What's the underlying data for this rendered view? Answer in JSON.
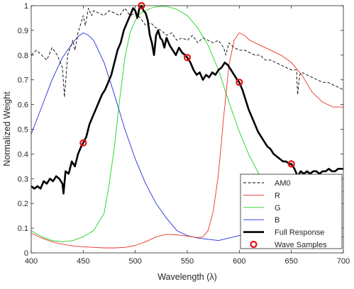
{
  "chart_data": {
    "type": "line",
    "title": "",
    "xlabel": "Wavelength (λ)",
    "ylabel": "Normalized Weight",
    "xlim": [
      400,
      700
    ],
    "ylim": [
      0,
      1
    ],
    "x_ticks": [
      400,
      450,
      500,
      550,
      600,
      650,
      700
    ],
    "y_ticks": [
      0,
      0.1,
      0.2,
      0.3,
      0.4,
      0.5,
      0.6,
      0.7,
      0.8,
      0.9,
      1
    ],
    "grid": false,
    "legend_position": "bottom-right",
    "series": [
      {
        "name": "AM0",
        "color": "#000000",
        "style": "dashed",
        "x": [
          400,
          405,
          410,
          415,
          420,
          425,
          430,
          432,
          435,
          440,
          442,
          445,
          450,
          452,
          455,
          458,
          460,
          465,
          470,
          475,
          480,
          485,
          490,
          495,
          500,
          505,
          510,
          515,
          520,
          525,
          530,
          535,
          540,
          545,
          550,
          555,
          560,
          565,
          570,
          575,
          580,
          585,
          587,
          590,
          595,
          600,
          605,
          610,
          615,
          620,
          625,
          630,
          635,
          640,
          645,
          650,
          655,
          656,
          658,
          660,
          665,
          670,
          675,
          680,
          685,
          690,
          695,
          700
        ],
        "y": [
          0.8,
          0.82,
          0.8,
          0.78,
          0.83,
          0.8,
          0.75,
          0.63,
          0.8,
          0.86,
          0.82,
          0.89,
          0.96,
          0.92,
          0.99,
          0.96,
          0.98,
          0.97,
          0.96,
          0.98,
          0.97,
          0.96,
          0.99,
          0.96,
          0.97,
          0.95,
          0.92,
          0.93,
          0.91,
          0.9,
          0.88,
          0.89,
          0.86,
          0.87,
          0.86,
          0.88,
          0.85,
          0.87,
          0.86,
          0.85,
          0.86,
          0.83,
          0.8,
          0.85,
          0.83,
          0.82,
          0.82,
          0.81,
          0.8,
          0.8,
          0.78,
          0.78,
          0.77,
          0.76,
          0.75,
          0.74,
          0.74,
          0.64,
          0.72,
          0.73,
          0.72,
          0.71,
          0.7,
          0.69,
          0.69,
          0.68,
          0.67,
          0.66
        ]
      },
      {
        "name": "R",
        "color": "#e8312a",
        "style": "solid",
        "x": [
          400,
          410,
          420,
          430,
          440,
          450,
          460,
          470,
          480,
          490,
          500,
          510,
          520,
          530,
          540,
          550,
          560,
          565,
          570,
          575,
          580,
          585,
          590,
          595,
          600,
          605,
          610,
          620,
          630,
          640,
          650,
          660,
          670,
          680,
          690,
          700
        ],
        "y": [
          0.08,
          0.06,
          0.045,
          0.035,
          0.028,
          0.025,
          0.022,
          0.02,
          0.02,
          0.022,
          0.03,
          0.045,
          0.065,
          0.075,
          0.073,
          0.068,
          0.062,
          0.065,
          0.09,
          0.17,
          0.32,
          0.55,
          0.76,
          0.86,
          0.89,
          0.88,
          0.86,
          0.84,
          0.82,
          0.8,
          0.77,
          0.72,
          0.65,
          0.61,
          0.59,
          0.59
        ]
      },
      {
        "name": "G",
        "color": "#1dd41d",
        "style": "solid",
        "x": [
          400,
          410,
          420,
          430,
          440,
          450,
          460,
          470,
          475,
          480,
          485,
          490,
          495,
          500,
          505,
          510,
          515,
          520,
          525,
          530,
          540,
          550,
          560,
          570,
          580,
          590,
          600,
          610,
          620,
          630,
          640,
          650,
          660,
          670,
          680,
          690,
          700
        ],
        "y": [
          0.09,
          0.065,
          0.05,
          0.045,
          0.05,
          0.065,
          0.09,
          0.16,
          0.28,
          0.43,
          0.62,
          0.79,
          0.89,
          0.94,
          0.97,
          0.98,
          0.99,
          0.995,
          0.998,
          0.997,
          0.985,
          0.96,
          0.91,
          0.84,
          0.74,
          0.61,
          0.49,
          0.39,
          0.31,
          0.25,
          0.21,
          0.18,
          0.17,
          0.18,
          0.2,
          0.23,
          0.25
        ]
      },
      {
        "name": "B",
        "color": "#1f2ed8",
        "style": "solid",
        "x": [
          400,
          410,
          420,
          430,
          440,
          445,
          450,
          455,
          460,
          470,
          480,
          490,
          500,
          510,
          520,
          530,
          540,
          550,
          560,
          570,
          580,
          590,
          600,
          620,
          640,
          660,
          680,
          700
        ],
        "y": [
          0.48,
          0.59,
          0.7,
          0.79,
          0.85,
          0.875,
          0.89,
          0.88,
          0.86,
          0.77,
          0.64,
          0.5,
          0.38,
          0.28,
          0.2,
          0.14,
          0.09,
          0.07,
          0.06,
          0.055,
          0.05,
          0.06,
          0.07,
          0.07,
          0.065,
          0.065,
          0.065,
          0.065
        ]
      },
      {
        "name": "Full Response",
        "color": "#000000",
        "style": "solid-thick",
        "x": [
          400,
          403,
          406,
          409,
          412,
          415,
          418,
          421,
          424,
          427,
          430,
          431,
          433,
          436,
          439,
          442,
          445,
          448,
          450,
          453,
          456,
          459,
          462,
          465,
          468,
          471,
          474,
          477,
          480,
          483,
          486,
          489,
          492,
          495,
          498,
          500,
          502,
          504,
          506,
          508,
          510,
          512,
          514,
          516,
          518,
          520,
          522,
          524,
          526,
          528,
          530,
          533,
          536,
          539,
          542,
          545,
          548,
          550,
          553,
          556,
          559,
          562,
          565,
          568,
          571,
          574,
          577,
          580,
          583,
          586,
          589,
          592,
          595,
          598,
          600,
          603,
          606,
          609,
          612,
          615,
          618,
          621,
          624,
          627,
          630,
          633,
          636,
          639,
          642,
          645,
          648,
          650,
          653,
          656,
          659,
          662,
          665,
          668,
          671,
          674,
          677,
          680,
          683,
          686,
          689,
          692,
          695,
          698,
          700
        ],
        "y": [
          0.27,
          0.26,
          0.27,
          0.26,
          0.29,
          0.28,
          0.3,
          0.29,
          0.31,
          0.3,
          0.28,
          0.24,
          0.33,
          0.32,
          0.37,
          0.35,
          0.4,
          0.43,
          0.445,
          0.47,
          0.52,
          0.55,
          0.58,
          0.61,
          0.64,
          0.66,
          0.69,
          0.72,
          0.77,
          0.82,
          0.85,
          0.9,
          0.93,
          0.96,
          0.99,
          0.98,
          0.95,
          0.99,
          1.0,
          0.98,
          0.97,
          0.94,
          0.88,
          0.85,
          0.8,
          0.88,
          0.9,
          0.87,
          0.86,
          0.83,
          0.87,
          0.84,
          0.82,
          0.8,
          0.83,
          0.81,
          0.8,
          0.79,
          0.77,
          0.74,
          0.72,
          0.73,
          0.7,
          0.72,
          0.71,
          0.73,
          0.72,
          0.74,
          0.75,
          0.77,
          0.76,
          0.74,
          0.72,
          0.7,
          0.69,
          0.66,
          0.62,
          0.58,
          0.55,
          0.52,
          0.49,
          0.47,
          0.45,
          0.43,
          0.42,
          0.4,
          0.39,
          0.38,
          0.37,
          0.37,
          0.36,
          0.36,
          0.34,
          0.31,
          0.33,
          0.32,
          0.33,
          0.32,
          0.33,
          0.33,
          0.32,
          0.33,
          0.33,
          0.34,
          0.33,
          0.33,
          0.34,
          0.34,
          0.34
        ]
      }
    ],
    "samples": {
      "name": "Wave Samples",
      "color": "#e81010",
      "x": [
        450,
        506,
        550,
        600,
        650
      ],
      "y": [
        0.445,
        1.0,
        0.79,
        0.69,
        0.36
      ]
    }
  }
}
